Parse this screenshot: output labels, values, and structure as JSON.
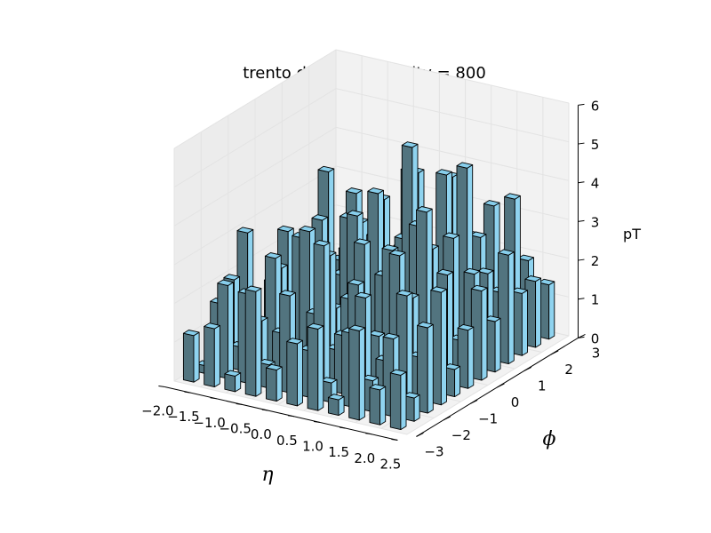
{
  "chart_data": {
    "type": "bar3d",
    "title": "trento data: multiplicity = 800",
    "xlabel": "η",
    "ylabel": "ϕ",
    "zlabel": "pT",
    "xlim": [
      -2.0,
      2.5
    ],
    "ylim": [
      -3,
      3
    ],
    "zlim": [
      0,
      6
    ],
    "xticks": [
      "−2.0",
      "−1.5",
      "−1.0",
      "−0.5",
      "0.0",
      "0.5",
      "1.0",
      "1.5",
      "2.0",
      "2.5"
    ],
    "yticks": [
      "−3",
      "−2",
      "−1",
      "0",
      "1",
      "2",
      "3"
    ],
    "zticks": [
      "0",
      "1",
      "2",
      "3",
      "4",
      "5",
      "6"
    ],
    "grid": true,
    "bar_color": "#87ceeb",
    "x_centers": [
      -1.8,
      -1.4,
      -1.0,
      -0.6,
      -0.2,
      0.2,
      0.6,
      1.0,
      1.4,
      1.8,
      2.2
    ],
    "y_centers": [
      -2.75,
      -2.25,
      -1.75,
      -1.25,
      -0.75,
      -0.25,
      0.25,
      0.75,
      1.25,
      1.75,
      2.25,
      2.75
    ],
    "heights": [
      [
        1.2,
        0.2,
        1.6,
        2.0,
        3.0,
        0.4,
        1.3,
        2.4,
        0.6,
        1.0,
        3.3,
        0.8
      ],
      [
        1.5,
        2.4,
        0.6,
        1.7,
        0.3,
        2.0,
        0.9,
        1.6,
        2.6,
        0.5,
        1.4,
        1.9
      ],
      [
        0.4,
        2.3,
        1.4,
        2.8,
        0.8,
        2.9,
        1.5,
        0.2,
        1.3,
        3.2,
        0.7,
        2.1
      ],
      [
        2.7,
        0.6,
        1.2,
        0.4,
        3.4,
        1.9,
        1.0,
        3.1,
        1.8,
        2.2,
        0.9,
        1.5
      ],
      [
        0.8,
        2.5,
        0.5,
        1.6,
        2.9,
        0.6,
        3.5,
        1.8,
        3.5,
        1.5,
        3.8,
        0.6
      ],
      [
        1.6,
        1.2,
        3.7,
        0.8,
        1.9,
        3.1,
        4.2,
        1.2,
        2.6,
        4.1,
        1.6,
        1.2
      ],
      [
        2.1,
        0.5,
        1.5,
        2.6,
        1.0,
        2.4,
        1.8,
        5.3,
        3.3,
        2.0,
        3.9,
        2.1
      ],
      [
        0.4,
        1.9,
        2.6,
        1.4,
        3.4,
        1.3,
        3.6,
        2.8,
        4.5,
        1.9,
        2.5,
        1.4
      ],
      [
        2.3,
        0.8,
        1.1,
        3.6,
        2.3,
        4.3,
        1.8,
        3.2,
        4.8,
        2.8,
        3.4,
        1.6
      ],
      [
        0.9,
        2.0,
        2.9,
        1.1,
        1.6,
        2.8,
        0.9,
        2.4,
        2.2,
        1.5,
        3.7,
        1.9
      ],
      [
        1.4,
        0.6,
        2.2,
        2.9,
        0.7,
        1.5,
        2.3,
        1.3,
        2.8,
        1.6,
        1.7,
        1.4
      ]
    ]
  }
}
